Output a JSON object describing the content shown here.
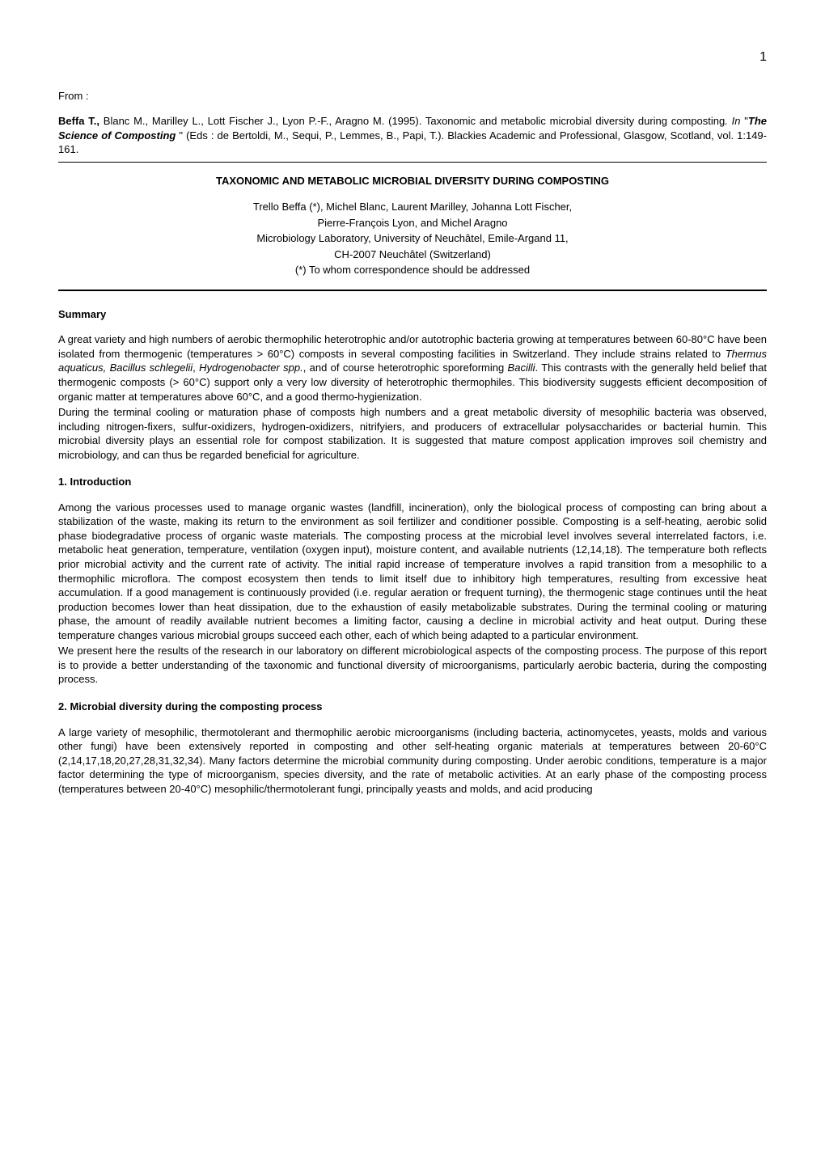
{
  "pageNumber": "1",
  "fromLabel": "From :",
  "citation": {
    "prefix_bold": "Beffa T.,",
    "middle1": " Blanc M., Marilley L., Lott Fischer J., Lyon P.-F., Aragno M. (1995). Taxonomic and metabolic microbial diversity during composting",
    "in_italic": ". In ",
    "quote_open": "\"",
    "book_bold_italic": "The Science of Composting ",
    "quote_close": "\"  (Eds : de Bertoldi, M., Sequi, P., Lemmes, B., Papi, T.). Blackies Academic and Professional, Glasgow, Scotland, vol. 1:149-161."
  },
  "title": "TAXONOMIC AND METABOLIC MICROBIAL DIVERSITY DURING COMPOSTING",
  "authors": "Trello Beffa (*), Michel Blanc, Laurent Marilley, Johanna Lott Fischer,",
  "authors2": "Pierre-François Lyon, and Michel Aragno",
  "affiliation1": "Microbiology Laboratory, University of Neuchâtel, Emile-Argand 11,",
  "affiliation2": "CH-2007 Neuchâtel (Switzerland)",
  "correspondence": "(*) To whom correspondence should be addressed",
  "sections": {
    "summary": {
      "heading": "Summary",
      "p1_a": "A great variety and high numbers of aerobic thermophilic heterotrophic and/or autotrophic bacteria growing at temperatures between 60-80°C have been isolated from thermogenic (temperatures > 60°C) composts in several composting facilities in Switzerland. They include strains related to ",
      "p1_i1": "Thermus aquaticus, Bacillus schlegelii",
      "p1_b": ", ",
      "p1_i2": "Hydrogenobacter spp.",
      "p1_c": ", and of course heterotrophic sporeforming ",
      "p1_i3": "Bacilli",
      "p1_d": ". This contrasts with the generally held belief that thermogenic composts (> 60°C) support only a very low diversity of heterotrophic thermophiles. This biodiversity suggests efficient decomposition of organic matter at temperatures above 60°C, and a good thermo-hygienization.",
      "p2": "During the terminal cooling or maturation phase of composts high numbers and a great metabolic diversity of mesophilic bacteria was observed, including nitrogen-fixers, sulfur-oxidizers, hydrogen-oxidizers, nitrifyiers, and producers of extracellular polysaccharides or bacterial humin. This microbial diversity plays an essential role for compost stabilization. It is suggested that mature compost application improves soil chemistry and microbiology, and can thus be regarded beneficial for agriculture."
    },
    "introduction": {
      "heading": "1. Introduction",
      "p1": "Among the various processes used to manage organic wastes (landfill, incineration), only the biological process of composting can bring about a stabilization of the waste, making its return to the environment as soil fertilizer and conditioner possible. Composting is a self-heating, aerobic solid phase biodegradative process of organic waste materials. The composting process at the microbial level involves several interrelated factors, i.e. metabolic heat generation, temperature, ventilation (oxygen input), moisture content, and available nutrients (12,14,18). The temperature both reflects prior microbial activity and the current rate of activity. The initial rapid increase of temperature involves a rapid transition from a mesophilic to a thermophilic microflora. The compost ecosystem then tends to limit itself due to inhibitory high temperatures, resulting from excessive heat accumulation. If a good management is continuously provided (i.e. regular aeration or frequent turning), the thermogenic stage continues until the heat production becomes lower than heat dissipation, due to the exhaustion of easily metabolizable substrates. During the terminal cooling or maturing phase, the amount of readily available nutrient becomes a limiting factor, causing a decline in microbial activity and heat output. During these temperature changes various microbial groups succeed each other, each of which being adapted to a particular environment.",
      "p2": "We present here the results of the research in our laboratory on different microbiological aspects of the composting process. The purpose of this report is to provide a better understanding of the taxonomic and functional diversity of microorganisms, particularly aerobic bacteria, during the composting process."
    },
    "diversity": {
      "heading": "2. Microbial diversity during the composting process",
      "p1": "A large variety of mesophilic, thermotolerant and thermophilic aerobic microorganisms (including bacteria, actinomycetes, yeasts, molds and various other fungi) have been extensively reported in composting and other self-heating organic materials at temperatures between 20-60°C (2,14,17,18,20,27,28,31,32,34). Many factors determine the microbial community during composting. Under aerobic conditions, temperature is a major factor determining the type of microorganism, species diversity, and the rate of metabolic activities. At an early phase of the composting process (temperatures between 20-40°C) mesophilic/thermotolerant fungi, principally yeasts and molds, and acid producing"
    }
  }
}
